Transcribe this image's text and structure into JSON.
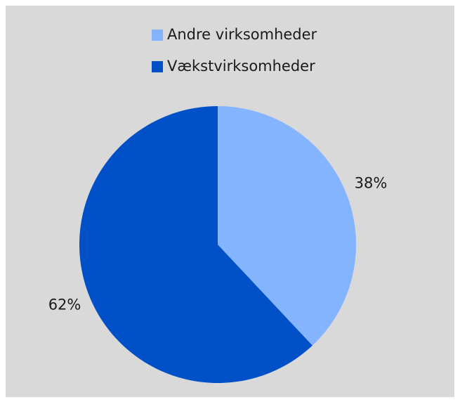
{
  "chart_data": {
    "type": "pie",
    "categories": [
      "Andre virksomheder",
      "Vækstvirksomheder"
    ],
    "values": [
      38,
      62
    ],
    "value_labels": [
      "38%",
      "62%"
    ],
    "colors": [
      "#85b4ff",
      "#0050c8"
    ],
    "legend": "top"
  }
}
